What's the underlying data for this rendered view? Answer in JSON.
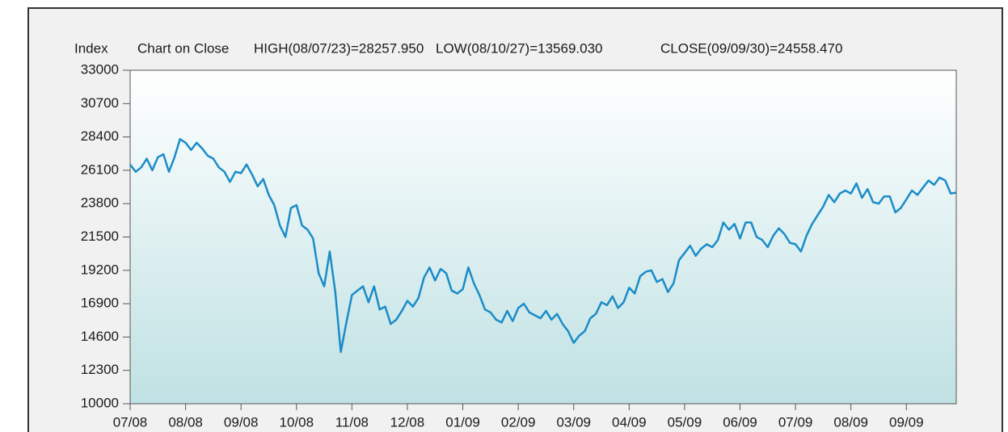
{
  "chart_data": {
    "type": "line",
    "y_label": "Index",
    "annotations": [
      "Chart on Close",
      "HIGH(08/07/23)=28257.950",
      "LOW(08/10/27)=13569.030",
      "CLOSE(09/09/30)=24558.470"
    ],
    "color": "#1a8cc8",
    "grid": false,
    "ylim": [
      10000,
      33000
    ],
    "yticks": [
      10000,
      12300,
      14600,
      16900,
      19200,
      21500,
      23800,
      26100,
      28400,
      30700,
      33000
    ],
    "xlim": [
      0,
      14.9
    ],
    "xticks": [
      {
        "value": 0,
        "label": "07/08"
      },
      {
        "value": 1,
        "label": "08/08"
      },
      {
        "value": 2,
        "label": "09/08"
      },
      {
        "value": 3,
        "label": "10/08"
      },
      {
        "value": 4,
        "label": "11/08"
      },
      {
        "value": 5,
        "label": "12/08"
      },
      {
        "value": 6,
        "label": "01/09"
      },
      {
        "value": 7,
        "label": "02/09"
      },
      {
        "value": 8,
        "label": "03/09"
      },
      {
        "value": 9,
        "label": "04/09"
      },
      {
        "value": 10,
        "label": "05/09"
      },
      {
        "value": 11,
        "label": "06/09"
      },
      {
        "value": 12,
        "label": "07/09"
      },
      {
        "value": 13,
        "label": "08/09"
      },
      {
        "value": 14,
        "label": "09/09"
      }
    ],
    "x": [
      0,
      0.1,
      0.2,
      0.3,
      0.4,
      0.5,
      0.6,
      0.7,
      0.8,
      0.9,
      1,
      1.1,
      1.2,
      1.3,
      1.4,
      1.5,
      1.6,
      1.7,
      1.8,
      1.9,
      2,
      2.1,
      2.2,
      2.3,
      2.4,
      2.5,
      2.6,
      2.7,
      2.8,
      2.9,
      3,
      3.1,
      3.2,
      3.3,
      3.4,
      3.5,
      3.6,
      3.7,
      3.8,
      3.9,
      4,
      4.1,
      4.2,
      4.3,
      4.4,
      4.5,
      4.6,
      4.7,
      4.8,
      4.9,
      5,
      5.1,
      5.2,
      5.3,
      5.4,
      5.5,
      5.6,
      5.7,
      5.8,
      5.9,
      6,
      6.1,
      6.2,
      6.3,
      6.4,
      6.5,
      6.6,
      6.7,
      6.8,
      6.9,
      7,
      7.1,
      7.2,
      7.3,
      7.4,
      7.5,
      7.6,
      7.7,
      7.8,
      7.9,
      8,
      8.1,
      8.2,
      8.3,
      8.4,
      8.5,
      8.6,
      8.7,
      8.8,
      8.9,
      9,
      9.1,
      9.2,
      9.3,
      9.4,
      9.5,
      9.6,
      9.7,
      9.8,
      9.9,
      10,
      10.1,
      10.2,
      10.3,
      10.4,
      10.5,
      10.6,
      10.7,
      10.8,
      10.9,
      11,
      11.1,
      11.2,
      11.3,
      11.4,
      11.5,
      11.6,
      11.7,
      11.8,
      11.9,
      12,
      12.1,
      12.2,
      12.3,
      12.4,
      12.5,
      12.6,
      12.7,
      12.8,
      12.9,
      13,
      13.1,
      13.2,
      13.3,
      13.4,
      13.5,
      13.6,
      13.7,
      13.8,
      13.9,
      14,
      14.1,
      14.2,
      14.3,
      14.4,
      14.5,
      14.6,
      14.7,
      14.8,
      14.9
    ],
    "values": [
      26500,
      26000,
      26300,
      26900,
      26100,
      27000,
      27200,
      26000,
      27000,
      28250,
      28000,
      27500,
      28000,
      27600,
      27100,
      26900,
      26300,
      26000,
      25300,
      26000,
      25900,
      26500,
      25800,
      25000,
      25500,
      24400,
      23700,
      22300,
      21500,
      23500,
      23700,
      22300,
      22000,
      21400,
      19000,
      18100,
      20500,
      17700,
      13569,
      15600,
      17500,
      17800,
      18100,
      17000,
      18100,
      16500,
      16700,
      15500,
      15800,
      16400,
      17100,
      16700,
      17300,
      18700,
      19400,
      18500,
      19300,
      19000,
      17800,
      17600,
      17900,
      19400,
      18300,
      17500,
      16500,
      16300,
      15800,
      15600,
      16400,
      15700,
      16600,
      16900,
      16300,
      16100,
      15900,
      16400,
      15800,
      16200,
      15500,
      15000,
      14200,
      14700,
      15000,
      15900,
      16200,
      17000,
      16800,
      17400,
      16600,
      17000,
      18000,
      17600,
      18800,
      19100,
      19200,
      18400,
      18600,
      17700,
      18300,
      19900,
      20400,
      20900,
      20200,
      20700,
      21000,
      20800,
      21300,
      22500,
      22000,
      22400,
      21400,
      22500,
      22500,
      21500,
      21300,
      20800,
      21600,
      22100,
      21700,
      21100,
      21000,
      20500,
      21600,
      22400,
      23000,
      23600,
      24400,
      23900,
      24500,
      24700,
      24500,
      25200,
      24200,
      24800,
      23900,
      23800,
      24300,
      24300,
      23200,
      23500,
      24100,
      24700,
      24400,
      24900,
      25400,
      25100,
      25600,
      25400,
      24500,
      24558
    ]
  }
}
